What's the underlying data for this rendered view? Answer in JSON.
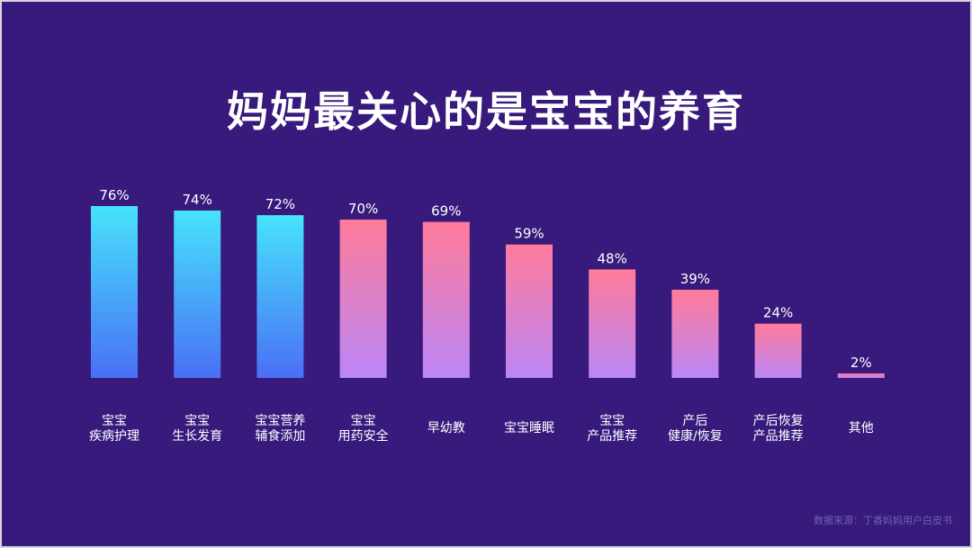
{
  "title": "妈妈最关心的是宝宝的养育",
  "source": "数据来源：丁香妈妈用户白皮书",
  "colors": {
    "background": "#371a7c",
    "cyan_top": "#47e3fb",
    "cyan_bottom": "#4a6ff6",
    "pink_top": "#ff7b9a",
    "pink_bottom": "#bb86f7"
  },
  "chart_data": {
    "type": "bar",
    "title": "妈妈最关心的是宝宝的养育",
    "categories": [
      [
        "宝宝",
        "疾病护理"
      ],
      [
        "宝宝",
        "生长发育"
      ],
      [
        "宝宝营养",
        "辅食添加"
      ],
      [
        "宝宝",
        "用药安全"
      ],
      [
        "早幼教"
      ],
      [
        "宝宝睡眠"
      ],
      [
        "宝宝",
        "产品推荐"
      ],
      [
        "产后",
        "健康/恢复"
      ],
      [
        "产后恢复",
        "产品推荐"
      ],
      [
        "其他"
      ]
    ],
    "values": [
      76,
      74,
      72,
      70,
      69,
      59,
      48,
      39,
      24,
      2
    ],
    "value_labels": [
      "76%",
      "74%",
      "72%",
      "70%",
      "69%",
      "59%",
      "48%",
      "39%",
      "24%",
      "2%"
    ],
    "unit": "%",
    "color_groups": [
      "cyan",
      "cyan",
      "cyan",
      "pink",
      "pink",
      "pink",
      "pink",
      "pink",
      "pink",
      "pink"
    ],
    "ylim": [
      0,
      76
    ],
    "grid": false,
    "legend": "none"
  }
}
